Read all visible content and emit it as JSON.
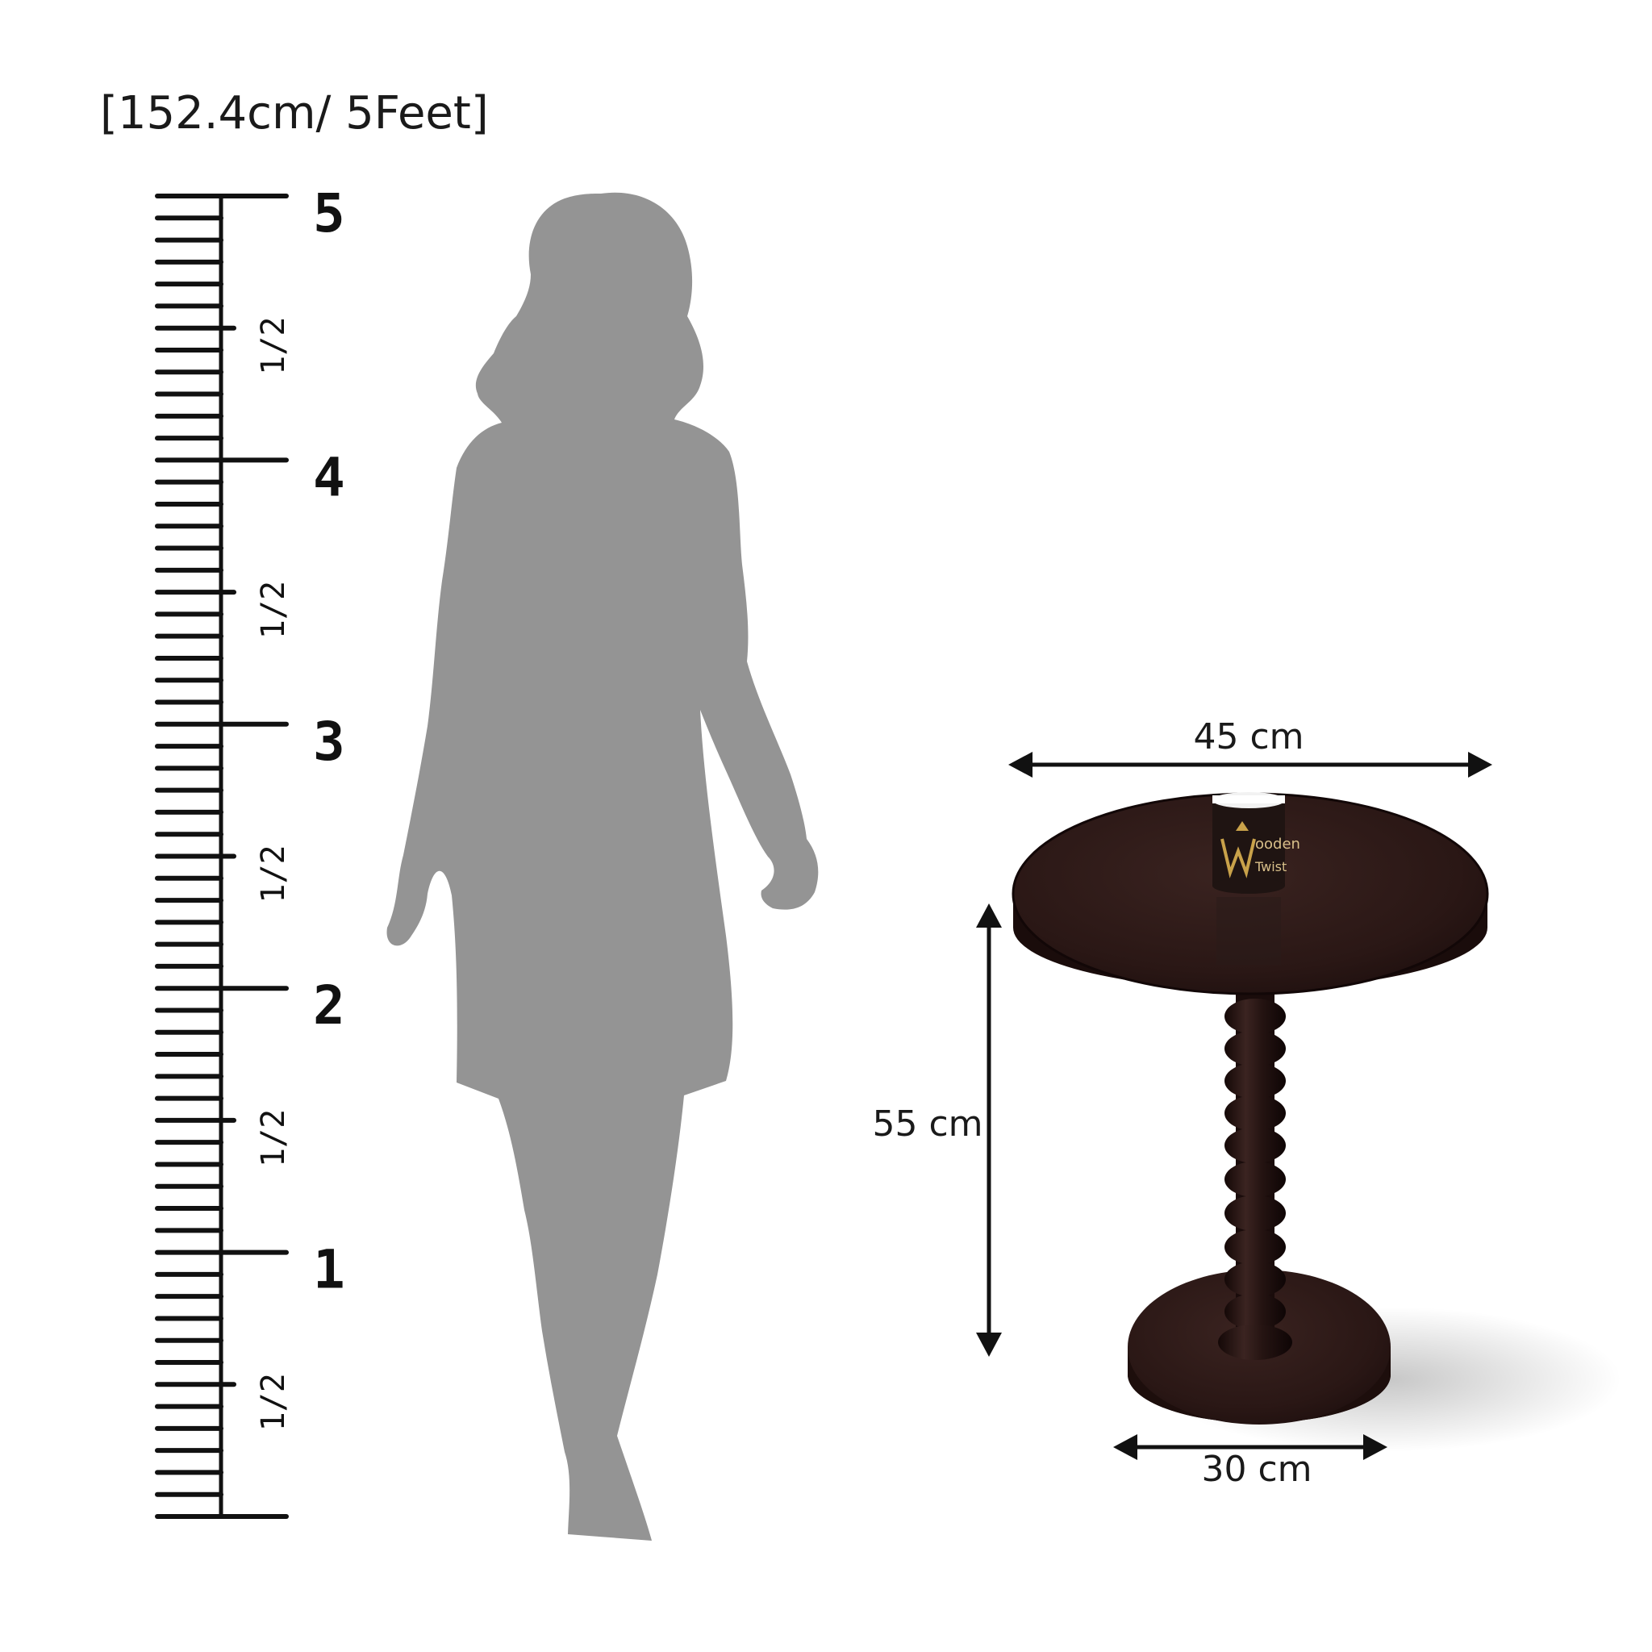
{
  "heading": "[152.4cm/ 5Feet]",
  "ruler": {
    "major_labels": [
      "5",
      "4",
      "3",
      "2",
      "1"
    ],
    "half_label": "1/2"
  },
  "table_dimensions": {
    "top_width": "45 cm",
    "height": "55 cm",
    "base_width": "30 cm"
  },
  "product_label": {
    "brand_line1": "ooden",
    "brand_line2": "Twist"
  },
  "colors": {
    "silhouette": "#949494",
    "wood": "#2e1a18",
    "ruler": "#111111"
  }
}
